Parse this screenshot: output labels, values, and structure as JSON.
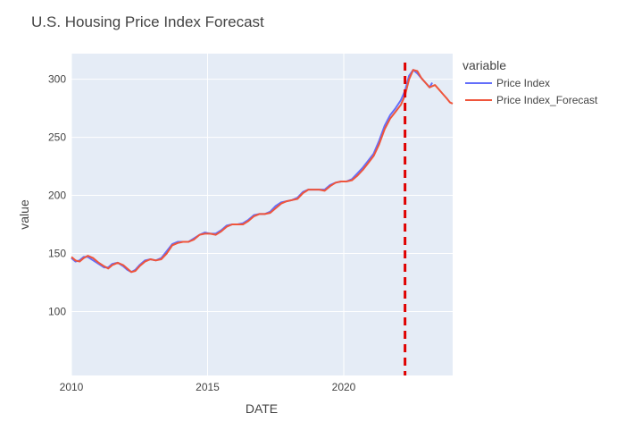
{
  "chart_data": {
    "type": "line",
    "title": "U.S. Housing Price Index Forecast",
    "xlabel": "DATE",
    "ylabel": "value",
    "xlim": [
      2010.0,
      2024.0
    ],
    "ylim": [
      45,
      322
    ],
    "xticks": [
      2010,
      2015,
      2020
    ],
    "yticks": [
      100,
      150,
      200,
      250,
      300
    ],
    "grid": true,
    "legend": {
      "title": "variable",
      "position": "right"
    },
    "marker_line": {
      "x": 2022.25,
      "color": "#e00000",
      "style": "dashed"
    },
    "colors": {
      "plot_bg": "#e5ecf6",
      "grid": "#ffffff"
    },
    "series": [
      {
        "name": "Price Index",
        "color": "#636efa",
        "points": [
          [
            2010.0,
            146
          ],
          [
            2010.15,
            143
          ],
          [
            2010.3,
            144
          ],
          [
            2010.45,
            147
          ],
          [
            2010.6,
            147
          ],
          [
            2010.8,
            144
          ],
          [
            2011.0,
            141
          ],
          [
            2011.2,
            138
          ],
          [
            2011.35,
            138
          ],
          [
            2011.5,
            141
          ],
          [
            2011.7,
            142
          ],
          [
            2011.9,
            139
          ],
          [
            2012.05,
            136
          ],
          [
            2012.2,
            134
          ],
          [
            2012.35,
            136
          ],
          [
            2012.5,
            140
          ],
          [
            2012.7,
            144
          ],
          [
            2012.9,
            145
          ],
          [
            2013.1,
            144
          ],
          [
            2013.3,
            146
          ],
          [
            2013.5,
            152
          ],
          [
            2013.7,
            158
          ],
          [
            2013.9,
            160
          ],
          [
            2014.1,
            160
          ],
          [
            2014.3,
            160
          ],
          [
            2014.5,
            163
          ],
          [
            2014.7,
            166
          ],
          [
            2014.9,
            168
          ],
          [
            2015.1,
            167
          ],
          [
            2015.3,
            167
          ],
          [
            2015.5,
            170
          ],
          [
            2015.7,
            174
          ],
          [
            2015.9,
            175
          ],
          [
            2016.1,
            175
          ],
          [
            2016.3,
            176
          ],
          [
            2016.5,
            179
          ],
          [
            2016.7,
            183
          ],
          [
            2016.9,
            184
          ],
          [
            2017.1,
            184
          ],
          [
            2017.3,
            186
          ],
          [
            2017.5,
            191
          ],
          [
            2017.7,
            194
          ],
          [
            2017.9,
            195
          ],
          [
            2018.1,
            196
          ],
          [
            2018.3,
            198
          ],
          [
            2018.5,
            203
          ],
          [
            2018.7,
            205
          ],
          [
            2018.9,
            205
          ],
          [
            2019.1,
            205
          ],
          [
            2019.3,
            205
          ],
          [
            2019.5,
            209
          ],
          [
            2019.7,
            211
          ],
          [
            2019.9,
            212
          ],
          [
            2020.1,
            212
          ],
          [
            2020.3,
            214
          ],
          [
            2020.5,
            219
          ],
          [
            2020.7,
            224
          ],
          [
            2020.9,
            230
          ],
          [
            2021.1,
            236
          ],
          [
            2021.3,
            247
          ],
          [
            2021.5,
            260
          ],
          [
            2021.7,
            269
          ],
          [
            2021.9,
            275
          ],
          [
            2022.1,
            282
          ],
          [
            2022.25,
            290
          ],
          [
            2022.4,
            303
          ],
          [
            2022.55,
            308
          ],
          [
            2022.7,
            305
          ],
          [
            2022.85,
            301
          ],
          [
            2023.0,
            297
          ],
          [
            2023.15,
            293
          ],
          [
            2023.25,
            297
          ]
        ]
      },
      {
        "name": "Price Index_Forecast",
        "color": "#ef553b",
        "points": [
          [
            2010.0,
            147
          ],
          [
            2010.15,
            144
          ],
          [
            2010.3,
            143
          ],
          [
            2010.45,
            146
          ],
          [
            2010.6,
            148
          ],
          [
            2010.8,
            146
          ],
          [
            2011.0,
            142
          ],
          [
            2011.2,
            139
          ],
          [
            2011.35,
            137
          ],
          [
            2011.5,
            140
          ],
          [
            2011.7,
            142
          ],
          [
            2011.9,
            140
          ],
          [
            2012.05,
            137
          ],
          [
            2012.2,
            134
          ],
          [
            2012.35,
            135
          ],
          [
            2012.5,
            139
          ],
          [
            2012.7,
            143
          ],
          [
            2012.9,
            145
          ],
          [
            2013.1,
            144
          ],
          [
            2013.3,
            145
          ],
          [
            2013.5,
            150
          ],
          [
            2013.7,
            157
          ],
          [
            2013.9,
            159
          ],
          [
            2014.1,
            160
          ],
          [
            2014.3,
            160
          ],
          [
            2014.5,
            162
          ],
          [
            2014.7,
            166
          ],
          [
            2014.9,
            167
          ],
          [
            2015.1,
            167
          ],
          [
            2015.3,
            166
          ],
          [
            2015.5,
            169
          ],
          [
            2015.7,
            173
          ],
          [
            2015.9,
            175
          ],
          [
            2016.1,
            175
          ],
          [
            2016.3,
            175
          ],
          [
            2016.5,
            178
          ],
          [
            2016.7,
            182
          ],
          [
            2016.9,
            184
          ],
          [
            2017.1,
            184
          ],
          [
            2017.3,
            185
          ],
          [
            2017.5,
            189
          ],
          [
            2017.7,
            193
          ],
          [
            2017.9,
            195
          ],
          [
            2018.1,
            196
          ],
          [
            2018.3,
            197
          ],
          [
            2018.5,
            202
          ],
          [
            2018.7,
            205
          ],
          [
            2018.9,
            205
          ],
          [
            2019.1,
            205
          ],
          [
            2019.3,
            204
          ],
          [
            2019.5,
            208
          ],
          [
            2019.7,
            211
          ],
          [
            2019.9,
            212
          ],
          [
            2020.1,
            212
          ],
          [
            2020.3,
            213
          ],
          [
            2020.5,
            217
          ],
          [
            2020.7,
            222
          ],
          [
            2020.9,
            228
          ],
          [
            2021.1,
            234
          ],
          [
            2021.3,
            244
          ],
          [
            2021.5,
            257
          ],
          [
            2021.7,
            266
          ],
          [
            2021.9,
            272
          ],
          [
            2022.1,
            278
          ],
          [
            2022.25,
            286
          ],
          [
            2022.4,
            300
          ],
          [
            2022.55,
            308
          ],
          [
            2022.7,
            307
          ],
          [
            2022.85,
            301
          ],
          [
            2023.0,
            297
          ],
          [
            2023.15,
            293
          ],
          [
            2023.35,
            295
          ],
          [
            2023.5,
            291
          ],
          [
            2023.65,
            287
          ],
          [
            2023.8,
            283
          ],
          [
            2023.9,
            280
          ],
          [
            2024.0,
            279
          ]
        ]
      }
    ]
  }
}
